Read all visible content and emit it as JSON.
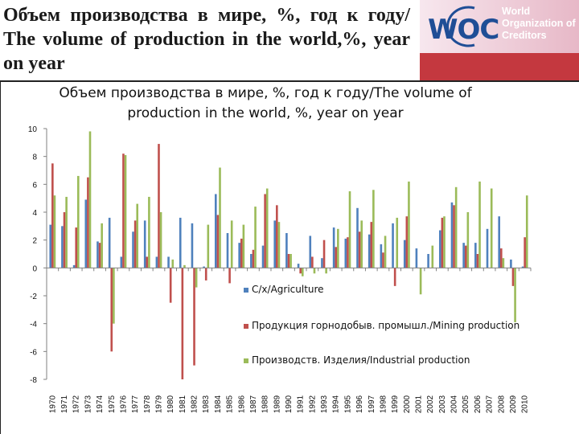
{
  "slide": {
    "title": "Объем производства в мире, %, год к году/ The volume of production in the world,%, year on year"
  },
  "logo": {
    "mark": "WOC",
    "lines": [
      "World",
      "Organization of",
      "Creditors"
    ]
  },
  "colors": {
    "agriculture": "#4f81bd",
    "mining": "#c0504d",
    "industrial": "#9bbb59",
    "logo_blue": "#1f4e96",
    "logo_red": "#c4383f"
  },
  "chart_data": {
    "type": "bar",
    "title": "Объем производства в мире, %, год к году/The volume of production in the world, %, year on year",
    "xlabel": "",
    "ylabel": "",
    "ylim": [
      -8,
      10
    ],
    "yticks": [
      10,
      8,
      6,
      4,
      2,
      0,
      -2,
      -4,
      -6,
      -8
    ],
    "grid": false,
    "legend_position": "right",
    "categories": [
      "1970",
      "1971",
      "1972",
      "1973",
      "1974",
      "1975",
      "1976",
      "1977",
      "1978",
      "1979",
      "1980",
      "1981",
      "1982",
      "1983",
      "1984",
      "1985",
      "1986",
      "1987",
      "1988",
      "1989",
      "1990",
      "1991",
      "1992",
      "1993",
      "1994",
      "1995",
      "1996",
      "1997",
      "1998",
      "1999",
      "2000",
      "2001",
      "2002",
      "2003",
      "2004",
      "2005",
      "2006",
      "2007",
      "2008",
      "2009",
      "2010"
    ],
    "series": [
      {
        "name": "С/х/Agriculture",
        "color": "#4f81bd",
        "values": [
          3.1,
          3.0,
          0.2,
          4.9,
          1.9,
          3.6,
          0.8,
          2.6,
          3.4,
          0.8,
          0.8,
          3.6,
          3.2,
          0.1,
          5.3,
          2.5,
          1.8,
          1.0,
          1.6,
          3.4,
          2.5,
          0.3,
          2.3,
          0.7,
          2.9,
          2.1,
          4.3,
          2.4,
          1.7,
          3.2,
          2.0,
          1.4,
          1.0,
          2.7,
          4.7,
          1.8,
          1.8,
          2.8,
          3.7,
          0.6,
          0.1
        ]
      },
      {
        "name": "Продукция горнодобыв. промышл./Mining production",
        "color": "#c0504d",
        "values": [
          7.5,
          4.0,
          2.9,
          6.5,
          1.8,
          -6.0,
          8.2,
          3.4,
          0.8,
          8.9,
          -2.5,
          -8.0,
          -7.0,
          -0.9,
          3.8,
          -1.1,
          2.1,
          1.3,
          5.3,
          4.5,
          1.0,
          -0.4,
          0.8,
          2.0,
          1.5,
          2.2,
          2.6,
          3.3,
          1.1,
          -1.3,
          3.7,
          0.0,
          0.0,
          3.6,
          4.5,
          1.6,
          1.0,
          0.0,
          1.4,
          -1.3,
          2.2
        ]
      },
      {
        "name": "Производств. Изделия/Industrial production",
        "color": "#9bbb59",
        "values": [
          5.2,
          5.1,
          6.6,
          9.8,
          3.2,
          -4.0,
          8.1,
          4.6,
          5.1,
          4.0,
          0.6,
          0.2,
          -1.4,
          3.1,
          7.2,
          3.4,
          3.1,
          4.4,
          5.7,
          3.3,
          1.0,
          -0.6,
          -0.4,
          -0.4,
          2.8,
          5.5,
          3.4,
          5.6,
          2.3,
          3.6,
          6.2,
          -1.9,
          1.6,
          3.7,
          5.8,
          4.0,
          6.2,
          5.7,
          0.7,
          -3.9,
          5.2
        ]
      }
    ]
  }
}
